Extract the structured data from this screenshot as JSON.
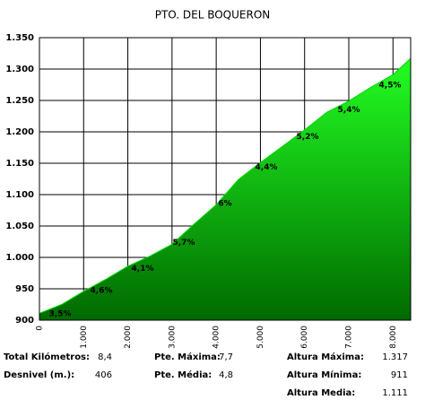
{
  "chart_data": {
    "type": "area",
    "title": "PTO. DEL BOQUERON",
    "x": [
      0,
      500,
      1000,
      1500,
      2000,
      2500,
      3000,
      3500,
      4000,
      4500,
      5000,
      5500,
      6000,
      6500,
      7000,
      7500,
      8000,
      8400
    ],
    "series": [
      {
        "color": "#00d800",
        "values": [
          911,
          925,
          946,
          965,
          986,
          1002,
          1021,
          1053,
          1084,
          1124,
          1151,
          1177,
          1203,
          1231,
          1249,
          1271,
          1291,
          1317
        ]
      }
    ],
    "xlim": [
      0,
      8400
    ],
    "xticks": [
      0,
      {
        "value": 1000,
        "label": "1.000"
      },
      {
        "value": 2000,
        "label": "2.000"
      },
      {
        "value": 3000,
        "label": "3.000"
      },
      {
        "value": 4000,
        "label": "4.000"
      },
      {
        "value": 5000,
        "label": "5.000"
      },
      {
        "value": 6000,
        "label": "6.000"
      },
      {
        "value": 7000,
        "label": "7.000"
      },
      {
        "value": 8000,
        "label": "8.000"
      }
    ],
    "ylim": [
      900,
      1350
    ],
    "yticks": [
      900,
      950,
      {
        "value": 1000,
        "label": "1.000"
      },
      {
        "value": 1050,
        "label": "1.050"
      },
      {
        "value": 1100,
        "label": "1.100"
      },
      {
        "value": 1150,
        "label": "1.150"
      },
      {
        "value": 1200,
        "label": "1.200"
      },
      {
        "value": 1250,
        "label": "1.250"
      },
      {
        "value": 1300,
        "label": "1.300"
      },
      {
        "value": 1350,
        "label": "1.350"
      }
    ],
    "grid": true,
    "annotations": [
      "3,5%",
      "4,6%",
      "4,1%",
      "5,7%",
      "6%",
      "4,4%",
      "5,2%",
      "5,4%",
      "4,5%"
    ]
  },
  "stats": [
    [
      [
        "Total Kilómetros:",
        "8,4"
      ],
      [
        "Pte. Máxima:",
        "7,7"
      ],
      [
        "Altura Máxima:",
        "1.317"
      ]
    ],
    [
      [
        "Desnivel (m.):",
        "406"
      ],
      [
        "Pte. Média:",
        "4,8"
      ],
      [
        "Altura Mínima:",
        "911"
      ]
    ],
    [
      null,
      null,
      [
        "Altura Media:",
        "1.111"
      ]
    ]
  ]
}
